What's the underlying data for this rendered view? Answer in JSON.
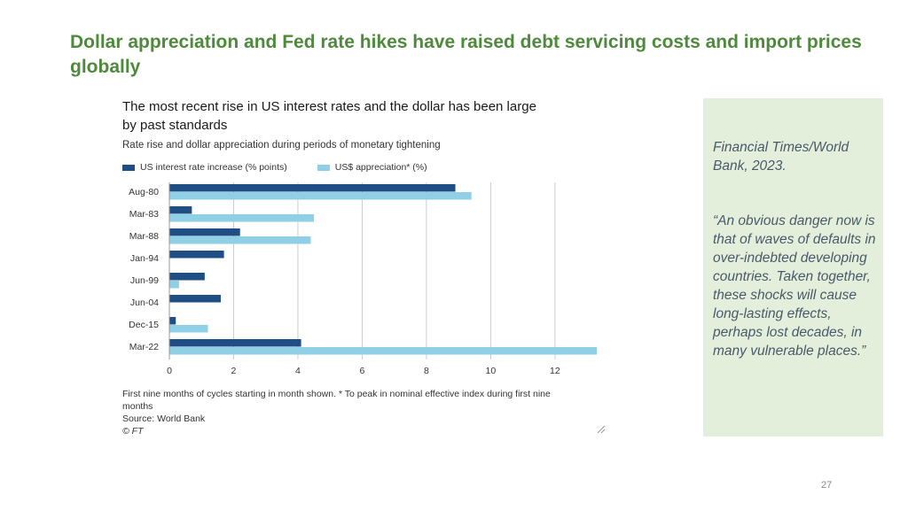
{
  "slide": {
    "title": "Dollar appreciation and Fed rate hikes have raised debt servicing costs and import prices globally",
    "page_number": "27"
  },
  "chart_block": {
    "heading": "The most recent rise in US interest rates and the dollar has been large by past standards",
    "note_line": "First nine months of cycles starting in month shown. * To peak in nominal effective index during first nine months",
    "source_line": "Source: World Bank",
    "ft_mark": "© FT"
  },
  "quote": {
    "source": "Financial Times/World Bank, 2023.",
    "text": "“An obvious danger now is that of waves of defaults in over-indebted developing countries. Taken together, these shocks will cause long-lasting effects, perhaps lost decades, in many vulnerable places.”"
  },
  "colors": {
    "title": "#4e8a3c",
    "series_rate": "#1f4e85",
    "series_usd": "#8fd0e6",
    "panel_bg": "#e3eedb",
    "grid": "#cccccc"
  },
  "icons": [
    "resize-handle-icon"
  ],
  "chart_data": {
    "type": "bar",
    "orientation": "horizontal",
    "subtitle": "Rate rise and dollar appreciation during periods of monetary tightening",
    "categories": [
      "Aug-80",
      "Mar-83",
      "Mar-88",
      "Jan-94",
      "Jun-99",
      "Jun-04",
      "Dec-15",
      "Mar-22"
    ],
    "series": [
      {
        "name": "US interest rate increase (% points)",
        "values": [
          8.9,
          0.7,
          2.2,
          1.7,
          1.1,
          1.6,
          0.2,
          4.1
        ]
      },
      {
        "name": "US$ appreciation* (%)",
        "values": [
          9.4,
          4.5,
          4.4,
          null,
          0.3,
          null,
          1.2,
          13.3
        ]
      }
    ],
    "xticks": [
      0,
      2,
      4,
      6,
      8,
      10,
      12
    ],
    "xlim": [
      0,
      13.3
    ],
    "grid": "vertical",
    "legend": "top-left"
  }
}
